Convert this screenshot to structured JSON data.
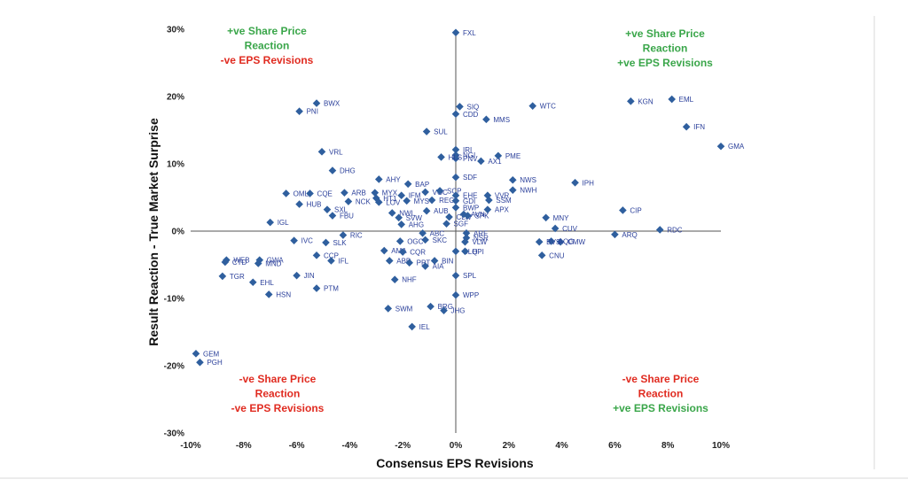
{
  "chart_data": {
    "type": "scatter",
    "title": "",
    "xlabel": "Consensus EPS Revisions",
    "ylabel": "Result Reaction - True Market Surprise",
    "xlim": [
      -0.1,
      0.1
    ],
    "ylim": [
      -0.3,
      0.3
    ],
    "x_ticks": [
      -0.1,
      -0.08,
      -0.06,
      -0.04,
      -0.02,
      0,
      0.02,
      0.04,
      0.06,
      0.08,
      0.1
    ],
    "x_tick_labels": [
      "-10%",
      "-8%",
      "-6%",
      "-4%",
      "-2%",
      "0%",
      "2%",
      "4%",
      "6%",
      "8%",
      "10%"
    ],
    "y_ticks": [
      -0.3,
      -0.2,
      -0.1,
      0,
      0.1,
      0.2,
      0.3
    ],
    "y_tick_labels": [
      "-30%",
      "-20%",
      "-10%",
      "0%",
      "10%",
      "20%",
      "30%"
    ],
    "grid": false,
    "point_color": "#2f5f9e",
    "label_color": "#2a3f9a",
    "quadrants": [
      {
        "position": "top-left",
        "lines": [
          {
            "text": "+ve Share Price",
            "color": "#3aa64a"
          },
          {
            "text": "Reaction",
            "color": "#3aa64a"
          },
          {
            "text": "-ve EPS Revisions",
            "color": "#e02b20"
          }
        ]
      },
      {
        "position": "top-right",
        "lines": [
          {
            "text": "+ve Share Price",
            "color": "#3aa64a"
          },
          {
            "text": "Reaction",
            "color": "#3aa64a"
          },
          {
            "text": "+ve EPS Revisions",
            "color": "#3aa64a"
          }
        ]
      },
      {
        "position": "bottom-left",
        "lines": [
          {
            "text": "-ve Share Price",
            "color": "#e02b20"
          },
          {
            "text": "Reaction",
            "color": "#e02b20"
          },
          {
            "text": "-ve EPS Revisions",
            "color": "#e02b20"
          }
        ]
      },
      {
        "position": "bottom-right",
        "lines": [
          {
            "text": "-ve Share Price",
            "color": "#e02b20"
          },
          {
            "text": "Reaction",
            "color": "#e02b20"
          },
          {
            "text": "+ve EPS Revisions",
            "color": "#3aa64a"
          }
        ]
      }
    ],
    "points": [
      {
        "label": "FXL",
        "x": 0.0,
        "y": 0.295
      },
      {
        "label": "BWX",
        "x": -0.0525,
        "y": 0.19
      },
      {
        "label": "PNI",
        "x": -0.059,
        "y": 0.178
      },
      {
        "label": "SIQ",
        "x": 0.0015,
        "y": 0.185
      },
      {
        "label": "CDD",
        "x": 0.0,
        "y": 0.174
      },
      {
        "label": "SUL",
        "x": -0.011,
        "y": 0.148
      },
      {
        "label": "MMS",
        "x": 0.0115,
        "y": 0.166
      },
      {
        "label": "WTC",
        "x": 0.029,
        "y": 0.186
      },
      {
        "label": "KGN",
        "x": 0.066,
        "y": 0.193
      },
      {
        "label": "EML",
        "x": 0.0815,
        "y": 0.196
      },
      {
        "label": "IFN",
        "x": 0.087,
        "y": 0.155
      },
      {
        "label": "GMA",
        "x": 0.1,
        "y": 0.126
      },
      {
        "label": "IRI",
        "x": 0.0,
        "y": 0.121
      },
      {
        "label": "NGI",
        "x": 0.0,
        "y": 0.113
      },
      {
        "label": "PNV",
        "x": 0.0,
        "y": 0.108
      },
      {
        "label": "HLS",
        "x": -0.0055,
        "y": 0.11
      },
      {
        "label": "AX1",
        "x": 0.0095,
        "y": 0.104
      },
      {
        "label": "PME",
        "x": 0.016,
        "y": 0.112
      },
      {
        "label": "VRL",
        "x": -0.0505,
        "y": 0.118
      },
      {
        "label": "DHG",
        "x": -0.0465,
        "y": 0.09
      },
      {
        "label": "BAP",
        "x": -0.018,
        "y": 0.07
      },
      {
        "label": "AHY",
        "x": -0.029,
        "y": 0.077
      },
      {
        "label": "SDF",
        "x": 0.0,
        "y": 0.08
      },
      {
        "label": "NWS",
        "x": 0.0215,
        "y": 0.076
      },
      {
        "label": "NWH",
        "x": 0.0215,
        "y": 0.061
      },
      {
        "label": "IPH",
        "x": 0.045,
        "y": 0.072
      },
      {
        "label": "OML",
        "x": -0.064,
        "y": 0.056
      },
      {
        "label": "CQE",
        "x": -0.055,
        "y": 0.056
      },
      {
        "label": "ARB",
        "x": -0.042,
        "y": 0.057
      },
      {
        "label": "MYX",
        "x": -0.0305,
        "y": 0.057
      },
      {
        "label": "HT1",
        "x": -0.03,
        "y": 0.049
      },
      {
        "label": "IFM",
        "x": -0.0205,
        "y": 0.053
      },
      {
        "label": "VOC",
        "x": -0.0115,
        "y": 0.058
      },
      {
        "label": "SCP",
        "x": -0.006,
        "y": 0.06
      },
      {
        "label": "EHE",
        "x": 0.0,
        "y": 0.053
      },
      {
        "label": "VVR",
        "x": 0.012,
        "y": 0.053
      },
      {
        "label": "SSM",
        "x": 0.0125,
        "y": 0.046
      },
      {
        "label": "HUB",
        "x": -0.059,
        "y": 0.04
      },
      {
        "label": "NCK",
        "x": -0.0405,
        "y": 0.044
      },
      {
        "label": "SXL",
        "x": -0.0485,
        "y": 0.032
      },
      {
        "label": "LOV",
        "x": -0.029,
        "y": 0.043
      },
      {
        "label": "MYS",
        "x": -0.0185,
        "y": 0.045
      },
      {
        "label": "REG",
        "x": -0.009,
        "y": 0.046
      },
      {
        "label": "GDI",
        "x": 0.0,
        "y": 0.045
      },
      {
        "label": "BWP",
        "x": 0.0,
        "y": 0.035
      },
      {
        "label": "APX",
        "x": 0.012,
        "y": 0.032
      },
      {
        "label": "CIP",
        "x": 0.063,
        "y": 0.031
      },
      {
        "label": "FBU",
        "x": -0.0465,
        "y": 0.023
      },
      {
        "label": "NWL",
        "x": -0.024,
        "y": 0.027
      },
      {
        "label": "AUB",
        "x": -0.011,
        "y": 0.03
      },
      {
        "label": "SVW",
        "x": -0.0215,
        "y": 0.02
      },
      {
        "label": "CLW",
        "x": -0.0025,
        "y": 0.021
      },
      {
        "label": "SPK",
        "x": 0.0045,
        "y": 0.023
      },
      {
        "label": "AVN",
        "x": 0.003,
        "y": 0.025
      },
      {
        "label": "MNY",
        "x": 0.034,
        "y": 0.02
      },
      {
        "label": "IGL",
        "x": -0.07,
        "y": 0.013
      },
      {
        "label": "AHG",
        "x": -0.0205,
        "y": 0.01
      },
      {
        "label": "SGF",
        "x": -0.0035,
        "y": 0.011
      },
      {
        "label": "CUV",
        "x": 0.0375,
        "y": 0.004
      },
      {
        "label": "RDC",
        "x": 0.077,
        "y": 0.002
      },
      {
        "label": "ABC",
        "x": -0.0125,
        "y": -0.003
      },
      {
        "label": "ARF",
        "x": 0.004,
        "y": -0.003
      },
      {
        "label": "RIC",
        "x": -0.0425,
        "y": -0.006
      },
      {
        "label": "NSR",
        "x": 0.004,
        "y": -0.01
      },
      {
        "label": "SKC",
        "x": -0.0115,
        "y": -0.013
      },
      {
        "label": "OGC",
        "x": -0.021,
        "y": -0.015
      },
      {
        "label": "VLW",
        "x": 0.0035,
        "y": -0.016
      },
      {
        "label": "ARQ",
        "x": 0.06,
        "y": -0.005
      },
      {
        "label": "CMW",
        "x": 0.0395,
        "y": -0.016
      },
      {
        "label": "IVC",
        "x": -0.061,
        "y": -0.014
      },
      {
        "label": "SLK",
        "x": -0.049,
        "y": -0.017
      },
      {
        "label": "AMA",
        "x": -0.027,
        "y": -0.029
      },
      {
        "label": "AQG",
        "x": 0.036,
        "y": -0.015
      },
      {
        "label": "BVS",
        "x": 0.0315,
        "y": -0.016
      },
      {
        "label": "CQR",
        "x": -0.02,
        "y": -0.031
      },
      {
        "label": "CLQ",
        "x": 0.0,
        "y": -0.03
      },
      {
        "label": "HPI",
        "x": 0.0035,
        "y": -0.03
      },
      {
        "label": "CNU",
        "x": 0.0325,
        "y": -0.036
      },
      {
        "label": "WEB",
        "x": -0.0865,
        "y": -0.043
      },
      {
        "label": "GWA",
        "x": -0.074,
        "y": -0.043
      },
      {
        "label": "CCP",
        "x": -0.0525,
        "y": -0.036
      },
      {
        "label": "IFL",
        "x": -0.047,
        "y": -0.044
      },
      {
        "label": "ABP",
        "x": -0.025,
        "y": -0.044
      },
      {
        "label": "BIN",
        "x": -0.008,
        "y": -0.044
      },
      {
        "label": "PPT",
        "x": -0.0175,
        "y": -0.047
      },
      {
        "label": "AIA",
        "x": -0.0115,
        "y": -0.052
      },
      {
        "label": "CTD",
        "x": -0.087,
        "y": -0.046
      },
      {
        "label": "MND",
        "x": -0.0745,
        "y": -0.048
      },
      {
        "label": "JIN",
        "x": -0.06,
        "y": -0.066
      },
      {
        "label": "SPL",
        "x": 0.0,
        "y": -0.066
      },
      {
        "label": "TGR",
        "x": -0.088,
        "y": -0.067
      },
      {
        "label": "EHL",
        "x": -0.0765,
        "y": -0.076
      },
      {
        "label": "NHF",
        "x": -0.023,
        "y": -0.072
      },
      {
        "label": "PTM",
        "x": -0.0525,
        "y": -0.085
      },
      {
        "label": "HSN",
        "x": -0.0705,
        "y": -0.094
      },
      {
        "label": "WPP",
        "x": 0.0,
        "y": -0.095
      },
      {
        "label": "BRG",
        "x": -0.0095,
        "y": -0.112
      },
      {
        "label": "SWM",
        "x": -0.0255,
        "y": -0.115
      },
      {
        "label": "JHG",
        "x": -0.0045,
        "y": -0.118
      },
      {
        "label": "IEL",
        "x": -0.0165,
        "y": -0.142
      },
      {
        "label": "GEM",
        "x": -0.098,
        "y": -0.182
      },
      {
        "label": "PGH",
        "x": -0.0965,
        "y": -0.195
      }
    ]
  }
}
